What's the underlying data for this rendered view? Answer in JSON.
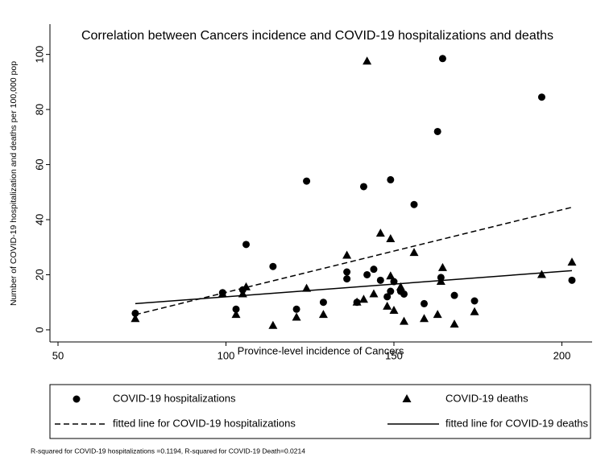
{
  "chart_data": {
    "type": "scatter",
    "title": "Correlation between Cancers incidence and COVID-19 hospitalizations and deaths",
    "x_label": "Province-level incidence of Cancers",
    "y_label": "Number of COVID-19 hospitalization and deaths per 100,000 pop",
    "note": "R-squared for COVID-19 hospitalizations =0.1194, R-squared for COVID-19 Death=0.0214",
    "xlim": [
      47.6,
      209
    ],
    "xticks": [
      50,
      100,
      150,
      200
    ],
    "ylim": [
      -4.4,
      111
    ],
    "yticks": [
      0,
      20,
      40,
      60,
      80,
      100
    ],
    "grid": false,
    "series": [
      {
        "name": "COVID-19 hospitalizations",
        "type": "scatter",
        "marker": "circle",
        "color": "#000000",
        "x": [
          73,
          99,
          103,
          105,
          106,
          114,
          121,
          124,
          129,
          136,
          136,
          139,
          141,
          142,
          144,
          146,
          148,
          149,
          149,
          150,
          152,
          153,
          156,
          159,
          163,
          164,
          164.5,
          168,
          174,
          194,
          203
        ],
        "values": [
          6,
          13.5,
          7.5,
          14.5,
          31,
          23,
          7.5,
          54,
          10,
          21,
          18.5,
          10,
          52,
          20,
          22,
          18,
          12,
          54.5,
          14,
          17.5,
          14,
          13,
          45.5,
          9.5,
          72,
          19,
          98.5,
          12.5,
          10.5,
          84.5,
          18
        ]
      },
      {
        "name": "COVID-19 deaths",
        "type": "scatter",
        "marker": "triangle",
        "color": "#000000",
        "x": [
          73,
          99,
          103,
          105,
          106,
          114,
          121,
          124,
          129,
          136,
          139,
          141,
          142,
          144,
          146,
          148,
          149,
          149,
          150,
          152,
          153,
          156,
          159,
          163,
          164,
          164.5,
          168,
          174,
          194,
          203
        ],
        "values": [
          4,
          13,
          5.5,
          13,
          15.5,
          1.5,
          4.5,
          15,
          5.5,
          27,
          10,
          11,
          97.5,
          13,
          35,
          8.5,
          33,
          19.5,
          7,
          15.5,
          3,
          28,
          4,
          5.5,
          17.5,
          22.5,
          2,
          6.5,
          20,
          24.5
        ]
      },
      {
        "name": "fitted line for COVID-19 hospitalizations",
        "type": "line",
        "dash": true,
        "color": "#000000",
        "x": [
          73,
          203
        ],
        "values": [
          5.5,
          44.5
        ]
      },
      {
        "name": "fitted line for COVID-19 deaths",
        "type": "line",
        "dash": false,
        "color": "#000000",
        "x": [
          73,
          203
        ],
        "values": [
          9.5,
          21.5
        ]
      }
    ]
  }
}
